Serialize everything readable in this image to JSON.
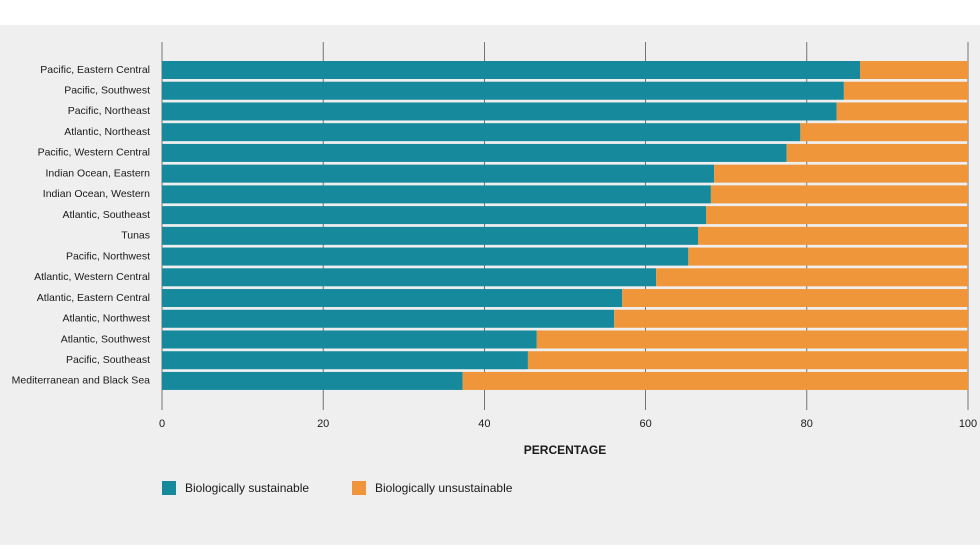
{
  "chart_data": {
    "type": "stacked-bar-horizontal",
    "x_label": "PERCENTAGE",
    "categories": [
      "Pacific, Eastern Central",
      "Pacific, Southwest",
      "Pacific, Northeast",
      "Atlantic, Northeast",
      "Pacific, Western Central",
      "Indian Ocean, Eastern",
      "Indian Ocean, Western",
      "Atlantic, Southeast",
      "Tunas",
      "Pacific, Northwest",
      "Atlantic, Western Central",
      "Atlantic, Eastern Central",
      "Atlantic, Northwest",
      "Atlantic, Southwest",
      "Pacific, Southeast",
      "Mediterranean and Black Sea"
    ],
    "series": [
      {
        "name": "Biologically sustainable",
        "color": "#17899d",
        "values": [
          86.6,
          84.6,
          83.7,
          79.2,
          77.5,
          68.5,
          68.1,
          67.5,
          66.5,
          65.3,
          61.3,
          57.1,
          56.1,
          46.5,
          45.4,
          37.3
        ]
      },
      {
        "name": "Biologically unsustainable",
        "color": "#f0963a",
        "values": [
          13.4,
          15.4,
          16.3,
          20.8,
          22.5,
          31.5,
          31.9,
          32.5,
          33.5,
          34.7,
          38.7,
          42.9,
          43.9,
          53.5,
          54.6,
          62.7
        ]
      }
    ],
    "xlim": [
      0,
      100
    ],
    "xticks": [
      0,
      20,
      40,
      60,
      80,
      100
    ],
    "grid": true
  }
}
